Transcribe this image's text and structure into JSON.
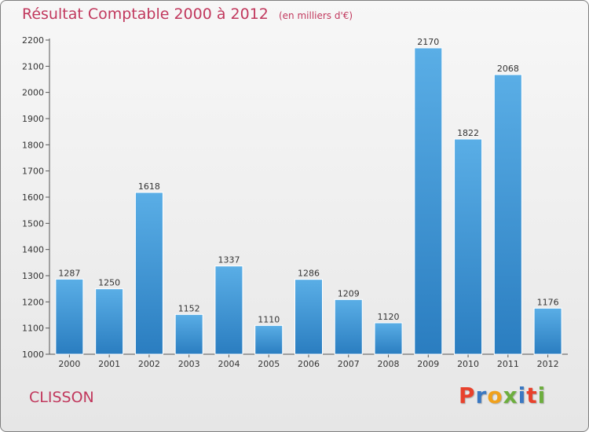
{
  "title": "Résultat Comptable 2000 à 2012",
  "unit": "(en milliers d'€)",
  "commune": "CLISSON",
  "logo": {
    "text": "Proxiti",
    "letter_colors": [
      "#e8412c",
      "#3a78c2",
      "#f0a11c",
      "#6dae3e",
      "#3a78c2",
      "#e8412c",
      "#6dae3e"
    ]
  },
  "colors": {
    "title": "#c1385d",
    "bar_top": "#5aaee6",
    "bar_bottom": "#2a7dc0"
  },
  "chart_data": {
    "type": "bar",
    "title": "Résultat Comptable 2000 à 2012",
    "xlabel": "",
    "ylabel": "",
    "categories": [
      "2000",
      "2001",
      "2002",
      "2003",
      "2004",
      "2005",
      "2006",
      "2007",
      "2008",
      "2009",
      "2010",
      "2011",
      "2012"
    ],
    "values": [
      1287,
      1250,
      1618,
      1152,
      1337,
      1110,
      1286,
      1209,
      1120,
      2170,
      1822,
      2068,
      1176
    ],
    "ylim": [
      1000,
      2200
    ],
    "yticks": [
      1000,
      1100,
      1200,
      1300,
      1400,
      1500,
      1600,
      1700,
      1800,
      1900,
      2000,
      2100,
      2200
    ],
    "grid": false,
    "data_labels": true
  }
}
